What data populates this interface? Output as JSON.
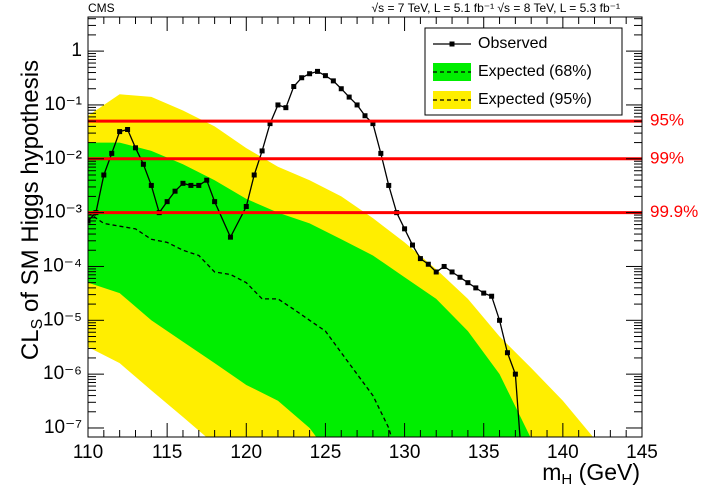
{
  "chart_data": {
    "type": "line",
    "experiment": "CMS",
    "energy_text": "√s = 7 TeV, L = 5.1 fb⁻¹  √s = 8 TeV, L = 5.3 fb⁻¹",
    "x_label": {
      "main": "m",
      "sub": "H",
      "rest": " (GeV)"
    },
    "y_label": {
      "main": "CL",
      "sub": "S",
      "rest": " of SM Higgs hypothesis"
    },
    "xlim": [
      110,
      145
    ],
    "xticks": [
      110,
      115,
      120,
      125,
      130,
      135,
      140,
      145
    ],
    "ylim": [
      6.8e-08,
      4.3
    ],
    "log_y": true,
    "yticks": [
      1,
      {
        "value": 0.1,
        "label": "10⁻¹"
      },
      {
        "value": 0.01,
        "label": "10⁻²"
      },
      {
        "value": 0.001,
        "label": "10⁻³"
      },
      {
        "value": 0.0001,
        "label": "10⁻⁴"
      },
      {
        "value": 1e-05,
        "label": "10⁻⁵"
      },
      {
        "value": 1e-06,
        "label": "10⁻⁶"
      },
      {
        "value": 1e-07,
        "label": "10⁻⁷"
      }
    ],
    "bands": [
      {
        "name": "Expected (95%)",
        "color": "#ffee00",
        "x": [
          110,
          112,
          114,
          116,
          118,
          120,
          122,
          124,
          126,
          128,
          130,
          132,
          134,
          136,
          138,
          140,
          142
        ],
        "high": [
          0.063,
          0.158,
          0.141,
          0.079,
          0.04,
          0.0158,
          0.0071,
          0.004,
          0.002,
          0.00079,
          0.00028,
          8.9e-05,
          2.5e-05,
          5e-06,
          1.3e-06,
          3.2e-07,
          6.3e-08
        ],
        "low": [
          3.2e-06,
          1.6e-06,
          5e-07,
          1.6e-07,
          5e-08,
          1e-08,
          1e-08,
          1e-08,
          1e-08,
          1e-08,
          1e-08,
          1e-08,
          1e-08,
          1e-08,
          1e-08,
          1e-08,
          1e-08
        ]
      },
      {
        "name": "Expected (68%)",
        "color": "#00ee00",
        "x": [
          110,
          112,
          114,
          116,
          118,
          120,
          122,
          124,
          126,
          128,
          130,
          132,
          134,
          136,
          138,
          140,
          142
        ],
        "high": [
          0.02,
          0.02,
          0.014,
          0.0079,
          0.004,
          0.0018,
          0.001,
          0.00063,
          0.00032,
          0.00016,
          6.3e-05,
          2.5e-05,
          6.3e-06,
          1e-06,
          6.3e-08,
          1e-08,
          1e-08
        ],
        "low": [
          5e-05,
          3.2e-05,
          1e-05,
          4e-06,
          1.6e-06,
          6.3e-07,
          3.2e-07,
          1e-07,
          1.6e-08,
          1e-08,
          1e-08,
          1e-08,
          1e-08,
          1e-08,
          1e-08,
          1e-08,
          1e-08
        ]
      }
    ],
    "expected": {
      "color": "#000000",
      "x": [
        110,
        111,
        112,
        113,
        114,
        115,
        116,
        117,
        118,
        119,
        120,
        121,
        122,
        123,
        124,
        125,
        126,
        127,
        128,
        129,
        129.5
      ],
      "values": [
        0.001,
        0.00063,
        0.00056,
        0.0005,
        0.00032,
        0.00028,
        0.0002,
        0.00016,
        7.9e-05,
        7.1e-05,
        5e-05,
        2.5e-05,
        2.5e-05,
        1.6e-05,
        1e-05,
        6.3e-06,
        2.5e-06,
        1e-06,
        4e-07,
        1e-07,
        3.2e-08
      ]
    },
    "series": [
      {
        "name": "Observed",
        "color": "#000000",
        "x": [
          110,
          110.5,
          111,
          111.5,
          112,
          112.5,
          113,
          113.5,
          114,
          114.5,
          115,
          115.5,
          116,
          116.5,
          117,
          117.5,
          118,
          119,
          120,
          120.5,
          121,
          121.5,
          122,
          122.5,
          123,
          123.5,
          124,
          124.5,
          125,
          125.5,
          126,
          126.5,
          127,
          127.5,
          128,
          128.5,
          129,
          129.5,
          130,
          130.5,
          131,
          131.5,
          132,
          132.5,
          133,
          133.5,
          134,
          134.5,
          135,
          135.5,
          136,
          136.5,
          137,
          137.5
        ],
        "values": [
          0.0007,
          0.001,
          0.005,
          0.0126,
          0.032,
          0.035,
          0.016,
          0.0079,
          0.0032,
          0.001,
          0.0016,
          0.0025,
          0.0035,
          0.0032,
          0.0032,
          0.004,
          0.0016,
          0.00035,
          0.0013,
          0.005,
          0.014,
          0.045,
          0.1,
          0.089,
          0.22,
          0.32,
          0.38,
          0.42,
          0.35,
          0.28,
          0.2,
          0.14,
          0.1,
          0.063,
          0.045,
          0.0126,
          0.0032,
          0.001,
          0.0005,
          0.00025,
          0.00014,
          0.00011,
          7.9e-05,
          0.0001,
          7.9e-05,
          6.3e-05,
          5e-05,
          4e-05,
          3.2e-05,
          2.8e-05,
          1e-05,
          2.5e-06,
          1e-06,
          1e-08
        ]
      }
    ],
    "levels": [
      {
        "value": 0.05,
        "label": "95%",
        "color": "#ff0000"
      },
      {
        "value": 0.01,
        "label": "99%",
        "color": "#ff0000"
      },
      {
        "value": 0.001,
        "label": "99.9%",
        "color": "#ff0000"
      }
    ]
  }
}
